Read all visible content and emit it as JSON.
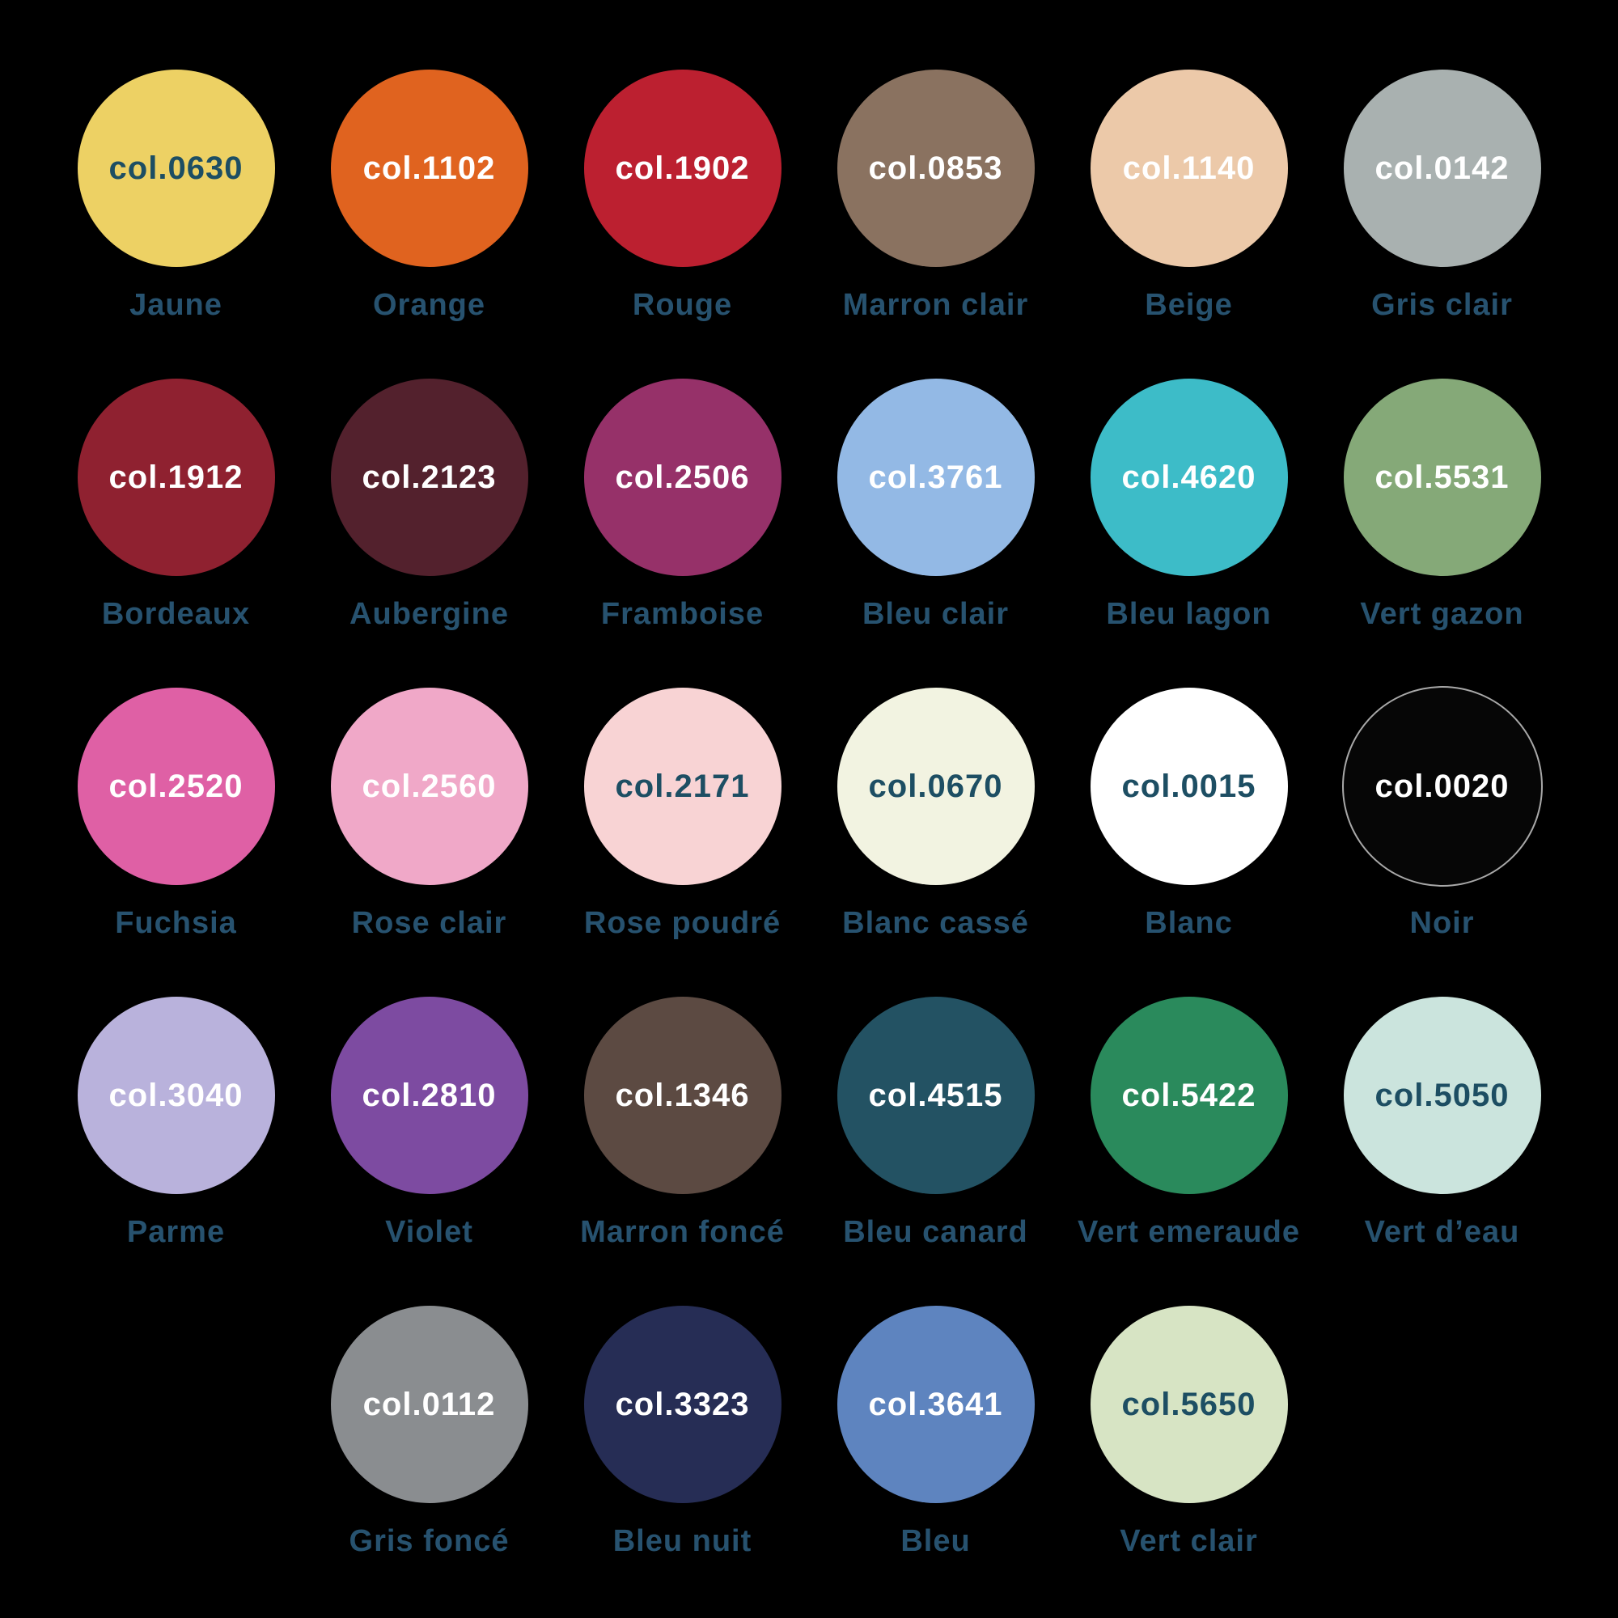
{
  "page": {
    "background": "#000000",
    "label_color": "#27526f",
    "dark_text_color": "#1d4e63",
    "light_text_color": "#ffffff",
    "noir_outline_color": "#a8a8a8"
  },
  "swatches": [
    {
      "code": "col.0630",
      "name": "Jaune",
      "color": "#edd164",
      "text": "dark",
      "row": 1,
      "col": 1
    },
    {
      "code": "col.1102",
      "name": "Orange",
      "color": "#e0631f",
      "text": "light",
      "row": 1,
      "col": 2
    },
    {
      "code": "col.1902",
      "name": "Rouge",
      "color": "#bc2030",
      "text": "light",
      "row": 1,
      "col": 3
    },
    {
      "code": "col.0853",
      "name": "Marron clair",
      "color": "#8a7260",
      "text": "light",
      "row": 1,
      "col": 4
    },
    {
      "code": "col.1140",
      "name": "Beige",
      "color": "#ecc9a9",
      "text": "light",
      "row": 1,
      "col": 5
    },
    {
      "code": "col.0142",
      "name": "Gris clair",
      "color": "#a9b1b0",
      "text": "light",
      "row": 1,
      "col": 6
    },
    {
      "code": "col.1912",
      "name": "Bordeaux",
      "color": "#8f2130",
      "text": "light",
      "row": 2,
      "col": 1
    },
    {
      "code": "col.2123",
      "name": "Aubergine",
      "color": "#53212d",
      "text": "light",
      "row": 2,
      "col": 2
    },
    {
      "code": "col.2506",
      "name": "Framboise",
      "color": "#963169",
      "text": "light",
      "row": 2,
      "col": 3
    },
    {
      "code": "col.3761",
      "name": "Bleu clair",
      "color": "#93b9e5",
      "text": "light",
      "row": 2,
      "col": 4
    },
    {
      "code": "col.4620",
      "name": "Bleu lagon",
      "color": "#3dbcc8",
      "text": "light",
      "row": 2,
      "col": 5
    },
    {
      "code": "col.5531",
      "name": "Vert gazon",
      "color": "#85a978",
      "text": "light",
      "row": 2,
      "col": 6
    },
    {
      "code": "col.2520",
      "name": "Fuchsia",
      "color": "#df60a5",
      "text": "light",
      "row": 3,
      "col": 1
    },
    {
      "code": "col.2560",
      "name": "Rose clair",
      "color": "#f0a8c8",
      "text": "light",
      "row": 3,
      "col": 2
    },
    {
      "code": "col.2171",
      "name": "Rose poudré",
      "color": "#f8d3d4",
      "text": "dark",
      "row": 3,
      "col": 3
    },
    {
      "code": "col.0670",
      "name": "Blanc cassé",
      "color": "#f2f3e1",
      "text": "dark",
      "row": 3,
      "col": 4
    },
    {
      "code": "col.0015",
      "name": "Blanc",
      "color": "#ffffff",
      "text": "dark",
      "row": 3,
      "col": 5
    },
    {
      "code": "col.0020",
      "name": "Noir",
      "color": "#060606",
      "text": "light",
      "row": 3,
      "col": 6,
      "outlined": true
    },
    {
      "code": "col.3040",
      "name": "Parme",
      "color": "#b9b2dc",
      "text": "light",
      "row": 4,
      "col": 1
    },
    {
      "code": "col.2810",
      "name": "Violet",
      "color": "#7d4ba1",
      "text": "light",
      "row": 4,
      "col": 2
    },
    {
      "code": "col.1346",
      "name": "Marron foncé",
      "color": "#5c4a42",
      "text": "light",
      "row": 4,
      "col": 3
    },
    {
      "code": "col.4515",
      "name": "Bleu canard",
      "color": "#235263",
      "text": "light",
      "row": 4,
      "col": 4
    },
    {
      "code": "col.5422",
      "name": "Vert emeraude",
      "color": "#2a8a5c",
      "text": "light",
      "row": 4,
      "col": 5
    },
    {
      "code": "col.5050",
      "name": "Vert d’eau",
      "color": "#cbe4dd",
      "text": "dark",
      "row": 4,
      "col": 6
    },
    {
      "code": "col.0112",
      "name": "Gris foncé",
      "color": "#8a8d90",
      "text": "light",
      "row": 5,
      "col": 2
    },
    {
      "code": "col.3323",
      "name": "Bleu nuit",
      "color": "#262d55",
      "text": "light",
      "row": 5,
      "col": 3
    },
    {
      "code": "col.3641",
      "name": "Bleu",
      "color": "#5e84bf",
      "text": "light",
      "row": 5,
      "col": 4
    },
    {
      "code": "col.5650",
      "name": "Vert clair",
      "color": "#d7e4c4",
      "text": "dark",
      "row": 5,
      "col": 5
    }
  ]
}
